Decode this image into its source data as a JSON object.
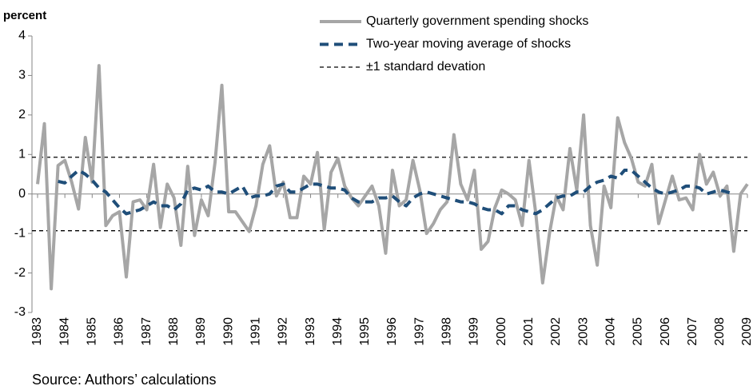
{
  "chart_data": {
    "type": "line",
    "y_label": "percent",
    "source": "Source: Authors’ calculations",
    "xlim": [
      1983,
      2009
    ],
    "xticks": [
      1983,
      1984,
      1985,
      1986,
      1987,
      1988,
      1989,
      1990,
      1991,
      1992,
      1993,
      1994,
      1995,
      1996,
      1997,
      1998,
      1999,
      2000,
      2001,
      2002,
      2003,
      2004,
      2005,
      2006,
      2007,
      2008,
      2009
    ],
    "ylim": [
      -3,
      4
    ],
    "yticks": [
      4,
      3,
      2,
      1,
      0,
      -1,
      -2,
      -3
    ],
    "grid": false,
    "series": [
      {
        "name": "Quarterly government spending shocks",
        "color": "#a6a6a6",
        "style": "solid",
        "x": [
          1983,
          1983.25,
          1983.5,
          1983.75,
          1984,
          1984.25,
          1984.5,
          1984.75,
          1985,
          1985.25,
          1985.5,
          1985.75,
          1986,
          1986.25,
          1986.5,
          1986.75,
          1987,
          1987.25,
          1987.5,
          1987.75,
          1988,
          1988.25,
          1988.5,
          1988.75,
          1989,
          1989.25,
          1989.5,
          1989.75,
          1990,
          1990.25,
          1990.5,
          1990.75,
          1991,
          1991.25,
          1991.5,
          1991.75,
          1992,
          1992.25,
          1992.5,
          1992.75,
          1993,
          1993.25,
          1993.5,
          1993.75,
          1994,
          1994.25,
          1994.5,
          1994.75,
          1995,
          1995.25,
          1995.5,
          1995.75,
          1996,
          1996.25,
          1996.5,
          1996.75,
          1997,
          1997.25,
          1997.5,
          1997.75,
          1998,
          1998.25,
          1998.5,
          1998.75,
          1999,
          1999.25,
          1999.5,
          1999.75,
          2000,
          2000.25,
          2000.5,
          2000.75,
          2001,
          2001.25,
          2001.5,
          2001.75,
          2002,
          2002.25,
          2002.5,
          2002.75,
          2003,
          2003.25,
          2003.5,
          2003.75,
          2004,
          2004.25,
          2004.5,
          2004.75,
          2005,
          2005.25,
          2005.5,
          2005.75,
          2006,
          2006.25,
          2006.5,
          2006.75,
          2007,
          2007.25,
          2007.5,
          2007.75,
          2008,
          2008.25,
          2008.5,
          2008.75,
          2009
        ],
        "values": [
          0.25,
          1.78,
          -2.4,
          0.72,
          0.85,
          0.3,
          -0.38,
          1.43,
          0.3,
          3.25,
          -0.8,
          -0.55,
          -0.45,
          -2.1,
          -0.2,
          -0.15,
          -0.4,
          0.75,
          -0.85,
          0.25,
          -0.1,
          -1.3,
          0.7,
          -1.05,
          -0.15,
          -0.55,
          0.8,
          2.75,
          -0.45,
          -0.45,
          -0.7,
          -0.95,
          -0.3,
          0.75,
          1.22,
          -0.05,
          0.3,
          -0.6,
          -0.6,
          0.45,
          0.25,
          1.05,
          -0.9,
          0.55,
          0.9,
          0.2,
          -0.1,
          -0.3,
          -0.05,
          0.2,
          -0.3,
          -1.5,
          0.6,
          -0.3,
          -0.15,
          0.85,
          0.1,
          -1.0,
          -0.75,
          -0.4,
          -0.2,
          1.5,
          0.25,
          -0.15,
          0.6,
          -1.4,
          -1.2,
          -0.35,
          0.1,
          0.0,
          -0.15,
          -0.8,
          0.85,
          -0.5,
          -2.25,
          -1.0,
          -0.05,
          -0.4,
          1.15,
          0.1,
          2.0,
          -0.8,
          -1.8,
          0.2,
          -0.35,
          1.93,
          1.3,
          0.9,
          0.3,
          0.2,
          0.75,
          -0.75,
          -0.15,
          0.45,
          -0.15,
          -0.1,
          -0.4,
          1.0,
          0.25,
          0.55,
          -0.05,
          0.2,
          -1.45,
          0.0,
          0.25
        ]
      },
      {
        "name": "Two-year moving average of shocks",
        "color": "#1f4e79",
        "style": "dashed",
        "x": [
          1983.75,
          1984,
          1984.25,
          1984.5,
          1984.75,
          1985,
          1985.25,
          1985.5,
          1985.75,
          1986,
          1986.25,
          1986.5,
          1986.75,
          1987,
          1987.25,
          1987.5,
          1987.75,
          1988,
          1988.25,
          1988.5,
          1988.75,
          1989,
          1989.25,
          1989.5,
          1989.75,
          1990,
          1990.25,
          1990.5,
          1990.75,
          1991,
          1991.25,
          1991.5,
          1991.75,
          1992,
          1992.25,
          1992.5,
          1992.75,
          1993,
          1993.25,
          1993.5,
          1993.75,
          1994,
          1994.25,
          1994.5,
          1994.75,
          1995,
          1995.25,
          1995.5,
          1995.75,
          1996,
          1996.25,
          1996.5,
          1996.75,
          1997,
          1997.25,
          1997.5,
          1997.75,
          1998,
          1998.25,
          1998.5,
          1998.75,
          1999,
          1999.25,
          1999.5,
          1999.75,
          2000,
          2000.25,
          2000.5,
          2000.75,
          2001,
          2001.25,
          2001.5,
          2001.75,
          2002,
          2002.25,
          2002.5,
          2002.75,
          2003,
          2003.25,
          2003.5,
          2003.75,
          2004,
          2004.25,
          2004.5,
          2004.75,
          2005,
          2005.25,
          2005.5,
          2005.75,
          2006,
          2006.25,
          2006.5,
          2006.75,
          2007,
          2007.25,
          2007.5,
          2007.75,
          2008,
          2008.25,
          2008.5
        ],
        "values": [
          0.32,
          0.28,
          0.45,
          0.6,
          0.5,
          0.35,
          0.15,
          0.05,
          -0.15,
          -0.35,
          -0.5,
          -0.45,
          -0.4,
          -0.3,
          -0.2,
          -0.3,
          -0.3,
          -0.4,
          -0.25,
          0.1,
          0.15,
          0.1,
          0.2,
          0.05,
          0.05,
          0.0,
          0.1,
          0.2,
          -0.1,
          -0.05,
          -0.05,
          0.0,
          0.2,
          0.25,
          0.05,
          0.05,
          0.15,
          0.25,
          0.25,
          0.2,
          0.15,
          0.15,
          0.1,
          -0.1,
          -0.2,
          -0.2,
          -0.2,
          -0.1,
          -0.1,
          -0.05,
          -0.2,
          -0.3,
          -0.1,
          0.0,
          0.05,
          0.0,
          -0.05,
          -0.1,
          -0.15,
          -0.2,
          -0.2,
          -0.25,
          -0.35,
          -0.4,
          -0.4,
          -0.5,
          -0.3,
          -0.3,
          -0.4,
          -0.45,
          -0.5,
          -0.4,
          -0.25,
          -0.1,
          -0.05,
          -0.05,
          0.05,
          0.05,
          0.2,
          0.3,
          0.35,
          0.45,
          0.4,
          0.6,
          0.6,
          0.45,
          0.3,
          0.15,
          0.05,
          0.0,
          0.05,
          0.1,
          0.2,
          0.2,
          0.15,
          0.0,
          0.05,
          0.1,
          0.05,
          0.0
        ]
      }
    ],
    "reference_lines": {
      "name": "±1 standard devation",
      "color": "#000000",
      "values": [
        0.93,
        -0.93
      ]
    }
  }
}
